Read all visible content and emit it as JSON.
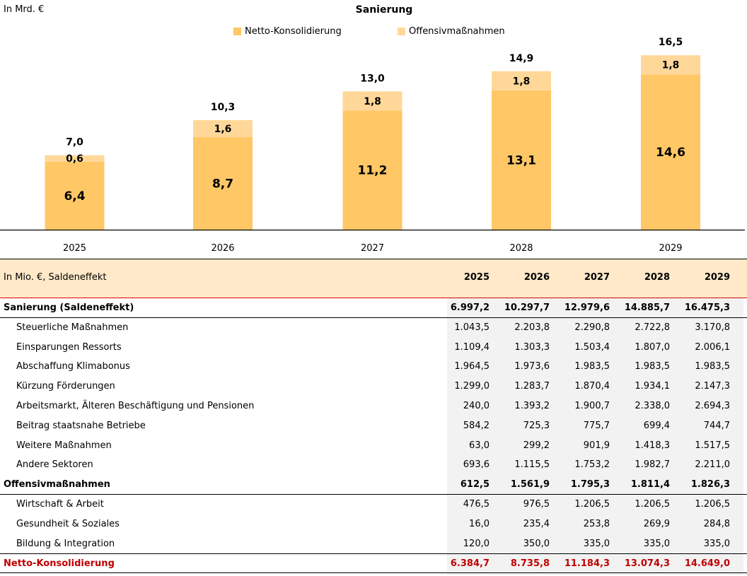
{
  "chart_data": {
    "type": "bar",
    "stacked": true,
    "title": "Sanierung",
    "unit_label": "In Mrd. €",
    "categories": [
      "2025",
      "2026",
      "2027",
      "2028",
      "2029"
    ],
    "series": [
      {
        "name": "Netto-Konsolidierung",
        "color": "#FFC766",
        "values": [
          6.4,
          8.7,
          11.2,
          13.1,
          14.6
        ],
        "labels": [
          "6,4",
          "8,7",
          "11,2",
          "13,1",
          "14,6"
        ]
      },
      {
        "name": "Offensivmaßnahmen",
        "color": "#FFD899",
        "values": [
          0.6,
          1.6,
          1.8,
          1.8,
          1.8
        ],
        "labels": [
          "0,6",
          "1,6",
          "1,8",
          "1,8",
          "1,8"
        ]
      }
    ],
    "totals": [
      7.0,
      10.3,
      13.0,
      14.9,
      16.5
    ],
    "total_labels": [
      "7,0",
      "10,3",
      "13,0",
      "14,9",
      "16,5"
    ],
    "legend_position": "top-center",
    "grid": false,
    "ylim": [
      0,
      16.5
    ]
  },
  "table": {
    "header_label": "In Mio. €, Saldeneffekt",
    "years": [
      "2025",
      "2026",
      "2027",
      "2028",
      "2029"
    ],
    "rows": [
      {
        "label": "Sanierung (Saldeneffekt)",
        "style": "bold",
        "values": [
          "6.997,2",
          "10.297,7",
          "12.979,6",
          "14.885,7",
          "16.475,3"
        ]
      },
      {
        "label": "Steuerliche Maßnahmen",
        "style": "sub",
        "values": [
          "1.043,5",
          "2.203,8",
          "2.290,8",
          "2.722,8",
          "3.170,8"
        ]
      },
      {
        "label": "Einsparungen Ressorts",
        "style": "sub",
        "values": [
          "1.109,4",
          "1.303,3",
          "1.503,4",
          "1.807,0",
          "2.006,1"
        ]
      },
      {
        "label": "Abschaffung Klimabonus",
        "style": "sub",
        "values": [
          "1.964,5",
          "1.973,6",
          "1.983,5",
          "1.983,5",
          "1.983,5"
        ]
      },
      {
        "label": "Kürzung Förderungen",
        "style": "sub",
        "values": [
          "1.299,0",
          "1.283,7",
          "1.870,4",
          "1.934,1",
          "2.147,3"
        ]
      },
      {
        "label": "Arbeitsmarkt, Älteren Beschäftigung und Pensionen",
        "style": "sub",
        "values": [
          "240,0",
          "1.393,2",
          "1.900,7",
          "2.338,0",
          "2.694,3"
        ]
      },
      {
        "label": "Beitrag staatsnahe Betriebe",
        "style": "sub",
        "values": [
          "584,2",
          "725,3",
          "775,7",
          "699,4",
          "744,7"
        ]
      },
      {
        "label": "Weitere Maßnahmen",
        "style": "sub",
        "values": [
          "63,0",
          "299,2",
          "901,9",
          "1.418,3",
          "1.517,5"
        ]
      },
      {
        "label": "Andere Sektoren",
        "style": "sub",
        "values": [
          "693,6",
          "1.115,5",
          "1.753,2",
          "1.982,7",
          "2.211,0"
        ]
      },
      {
        "label": "Offensivmaßnahmen",
        "style": "bold",
        "values": [
          "612,5",
          "1.561,9",
          "1.795,3",
          "1.811,4",
          "1.826,3"
        ]
      },
      {
        "label": "Wirtschaft & Arbeit",
        "style": "sub",
        "values": [
          "476,5",
          "976,5",
          "1.206,5",
          "1.206,5",
          "1.206,5"
        ]
      },
      {
        "label": "Gesundheit & Soziales",
        "style": "sub",
        "values": [
          "16,0",
          "235,4",
          "253,8",
          "269,9",
          "284,8"
        ]
      },
      {
        "label": "Bildung & Integration",
        "style": "sub",
        "values": [
          "120,0",
          "350,0",
          "335,0",
          "335,0",
          "335,0"
        ]
      },
      {
        "label": "Netto-Konsolidierung",
        "style": "red",
        "values": [
          "6.384,7",
          "8.735,8",
          "11.184,3",
          "13.074,3",
          "14.649,0"
        ]
      }
    ]
  }
}
